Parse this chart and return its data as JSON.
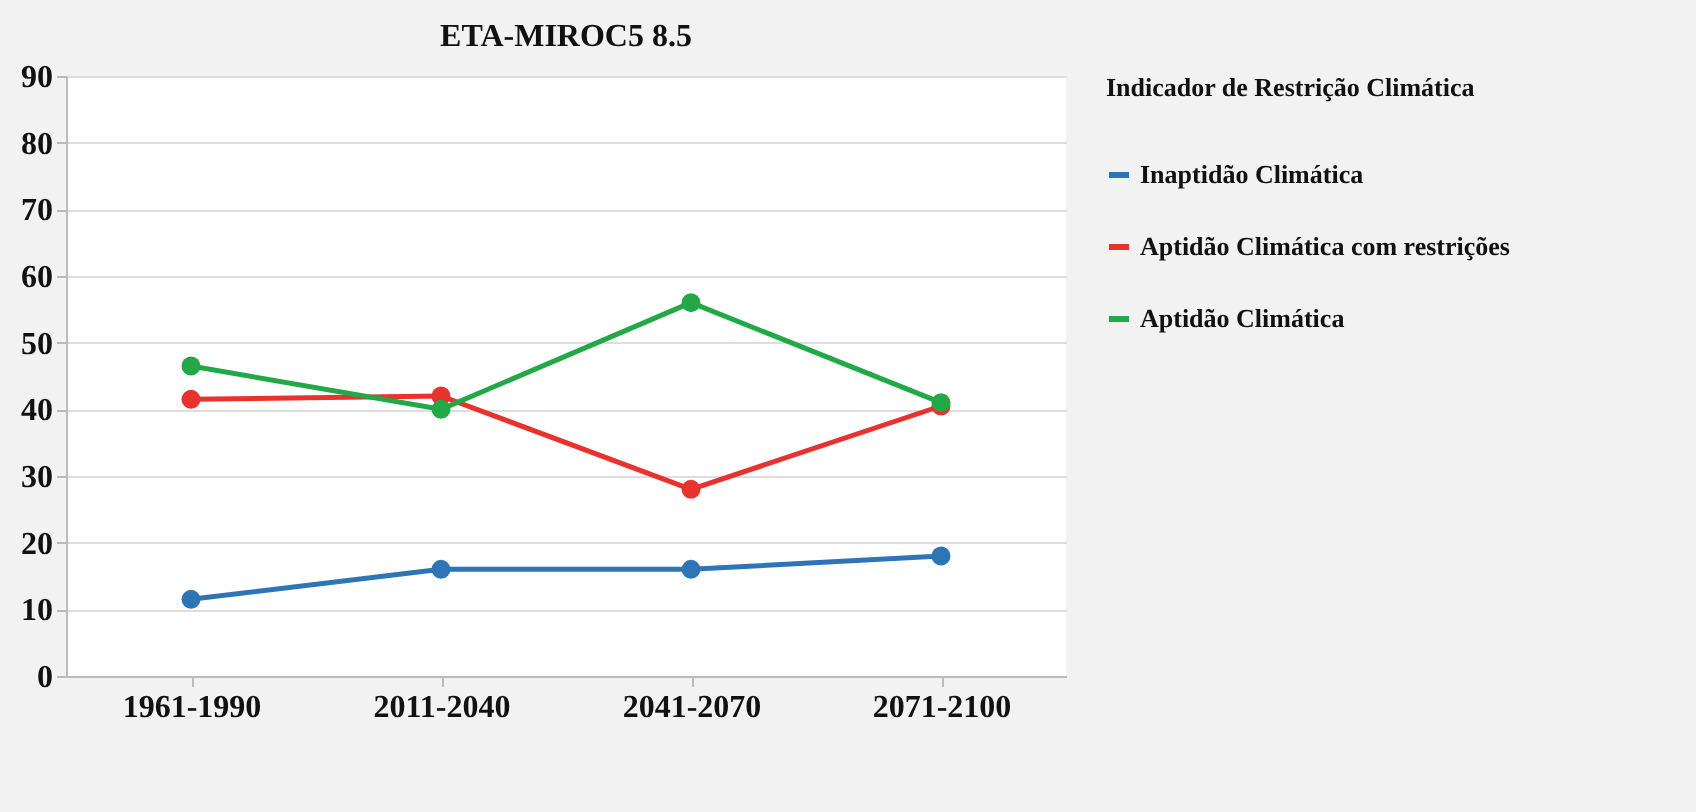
{
  "chart_data": {
    "type": "line",
    "title": "ETA-MIROC5 8.5",
    "legend_title": "Indicador de Restrição Climática",
    "categories": [
      "1961-1990",
      "2011-2040",
      "2041-2070",
      "2071-2100"
    ],
    "series": [
      {
        "name": "Inaptidão Climática",
        "color": "#2e75b6",
        "values": [
          11.5,
          16,
          16,
          18
        ]
      },
      {
        "name": "Aptidão Climática com restrições",
        "color": "#e8322e",
        "values": [
          41.5,
          42,
          28,
          40.5
        ]
      },
      {
        "name": "Aptidão Climática",
        "color": "#22a846",
        "values": [
          46.5,
          40,
          56,
          41
        ]
      }
    ],
    "ylim": [
      0,
      90
    ],
    "yticks": [
      0,
      10,
      20,
      30,
      40,
      50,
      60,
      70,
      80,
      90
    ],
    "grid": "y",
    "legend": "right",
    "marker": "circle",
    "line_style": "solid"
  }
}
